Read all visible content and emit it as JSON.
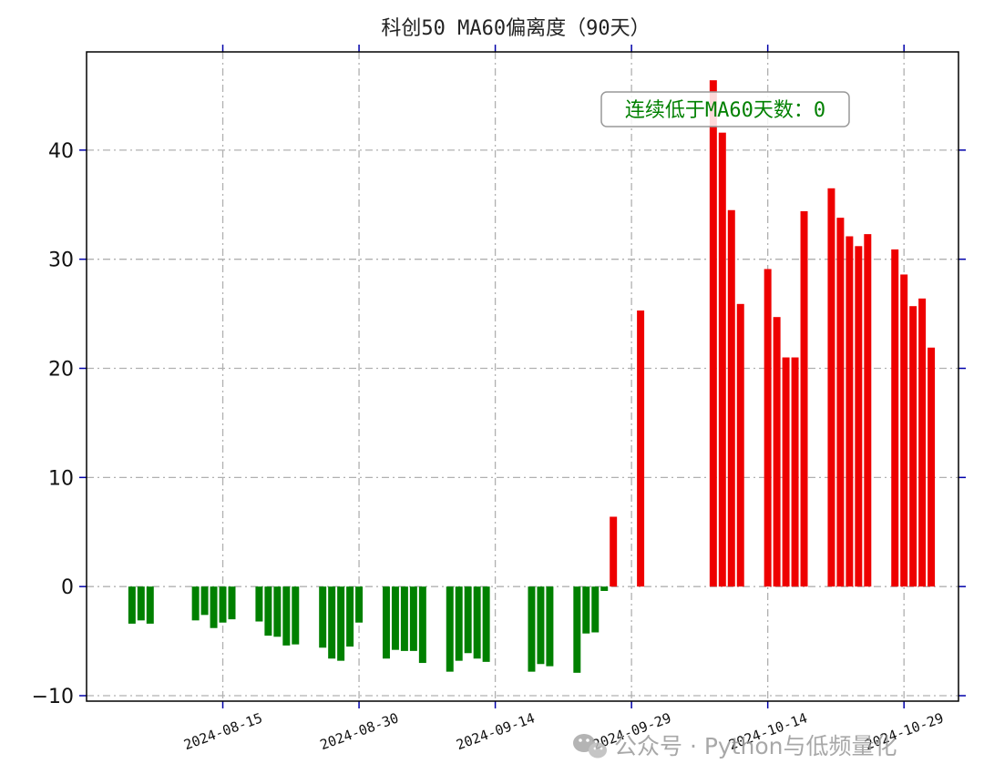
{
  "chart_data": {
    "type": "bar",
    "title": "科创50 MA60偏离度（90天）",
    "xlabel": "",
    "ylabel": "",
    "x_ticks": [
      "2024-08-15",
      "2024-08-30",
      "2024-09-14",
      "2024-09-29",
      "2024-10-14",
      "2024-10-29"
    ],
    "y_ticks": [
      "−10",
      "0",
      "10",
      "20",
      "30",
      "40"
    ],
    "ylim": [
      -10.5,
      49
    ],
    "xlim": [
      "2024-07-31",
      "2024-11-04"
    ],
    "grid": true,
    "colors": {
      "positive": "#ee0000",
      "negative": "#008000",
      "grid": "#b0b0b0",
      "tick": "#0000aa"
    },
    "dates": [
      "2024-08-05",
      "2024-08-06",
      "2024-08-07",
      "2024-08-08",
      "2024-08-09",
      "2024-08-12",
      "2024-08-13",
      "2024-08-14",
      "2024-08-15",
      "2024-08-16",
      "2024-08-19",
      "2024-08-20",
      "2024-08-21",
      "2024-08-22",
      "2024-08-23",
      "2024-08-26",
      "2024-08-27",
      "2024-08-28",
      "2024-08-29",
      "2024-08-30",
      "2024-09-02",
      "2024-09-03",
      "2024-09-04",
      "2024-09-05",
      "2024-09-06",
      "2024-09-09",
      "2024-09-10",
      "2024-09-11",
      "2024-09-12",
      "2024-09-13",
      "2024-09-18",
      "2024-09-19",
      "2024-09-20",
      "2024-09-23",
      "2024-09-24",
      "2024-09-25",
      "2024-09-26",
      "2024-09-27",
      "2024-09-30",
      "2024-10-08",
      "2024-10-09",
      "2024-10-10",
      "2024-10-11",
      "2024-10-14",
      "2024-10-15",
      "2024-10-16",
      "2024-10-17",
      "2024-10-18",
      "2024-10-21",
      "2024-10-22",
      "2024-10-23",
      "2024-10-24",
      "2024-10-25",
      "2024-10-28",
      "2024-10-29",
      "2024-10-30",
      "2024-10-31",
      "2024-11-01"
    ],
    "values": [
      -3.4,
      -3.1,
      -3.4,
      0,
      0,
      -3.1,
      -2.6,
      -3.8,
      -3.3,
      -3.0,
      -3.2,
      -4.5,
      -4.6,
      -5.4,
      -5.3,
      -5.6,
      -6.6,
      -6.8,
      -5.5,
      -3.3,
      -6.6,
      -5.8,
      -5.9,
      -5.9,
      -7.0,
      -7.8,
      -6.8,
      -6.1,
      -6.6,
      -6.9,
      -7.8,
      -7.1,
      -7.3,
      -7.9,
      -4.3,
      -4.2,
      -0.4,
      6.4,
      25.3,
      46.4,
      41.6,
      34.5,
      25.9,
      29.1,
      24.7,
      21.0,
      21.0,
      34.4,
      36.5,
      33.8,
      32.1,
      31.2,
      32.3,
      30.9,
      28.6,
      25.7,
      26.4,
      21.9
    ]
  },
  "annotation": {
    "text": "连续低于MA60天数：0",
    "color": "#008000"
  },
  "watermark": {
    "text": "公众号 · Python与低频量化"
  }
}
